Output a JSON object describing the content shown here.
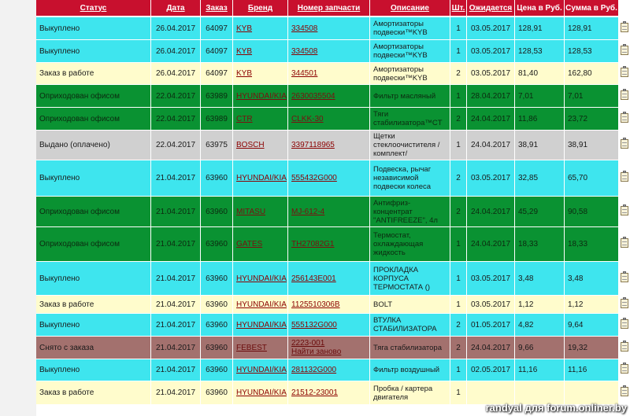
{
  "headers": {
    "status": "Статус",
    "date": "Дата",
    "order": "Заказ",
    "brand": "Бренд",
    "part": "Номер запчасти",
    "desc": "Описание",
    "qty": "Шт.",
    "expected": "Ожидается",
    "price": "Цена в Руб.",
    "sum": "Сумма в Руб."
  },
  "rows": [
    {
      "color": "cyan",
      "status": "Выкуплено",
      "date": "26.04.2017",
      "order": "64097",
      "brand": "KYB",
      "part": "334508",
      "part2": "",
      "desc": "Амортизаторы подвески™KYB",
      "qty": "1",
      "expected": "03.05.2017",
      "price": "128,91",
      "sum": "128,91"
    },
    {
      "color": "cyan",
      "status": "Выкуплено",
      "date": "26.04.2017",
      "order": "64097",
      "brand": "KYB",
      "part": "334508",
      "part2": "",
      "desc": "Амортизаторы подвески™KYB",
      "qty": "1",
      "expected": "03.05.2017",
      "price": "128,53",
      "sum": "128,53"
    },
    {
      "color": "yellow",
      "status": "Заказ в работе",
      "date": "26.04.2017",
      "order": "64097",
      "brand": "KYB",
      "part": "344501",
      "part2": "",
      "desc": "Амортизаторы подвески™KYB",
      "qty": "2",
      "expected": "03.05.2017",
      "price": "81,40",
      "sum": "162,80"
    },
    {
      "color": "green",
      "status": "Оприходован офисом",
      "date": "22.04.2017",
      "order": "63989",
      "brand": "HYUNDAI/KIA",
      "part": "2630035504",
      "part2": "",
      "desc": "Фильтр масляный",
      "qty": "1",
      "expected": "28.04.2017",
      "price": "7,01",
      "sum": "7,01"
    },
    {
      "color": "green",
      "status": "Оприходован офисом",
      "date": "22.04.2017",
      "order": "63989",
      "brand": "CTR",
      "part": "CLKK-30",
      "part2": "",
      "desc": "Тяги стабилизатора™CT",
      "qty": "2",
      "expected": "24.04.2017",
      "price": "11,86",
      "sum": "23,72"
    },
    {
      "color": "gray",
      "status": "Выдано (оплачено)",
      "date": "22.04.2017",
      "order": "63975",
      "brand": "BOSCH",
      "part": "3397118965",
      "part2": "",
      "desc": "Щетки стеклоочистителя /комплект/",
      "qty": "1",
      "expected": "24.04.2017",
      "price": "38,91",
      "sum": "38,91"
    },
    {
      "color": "cyan",
      "status": "Выкуплено",
      "date": "21.04.2017",
      "order": "63960",
      "brand": "HYUNDAI/KIA",
      "part": "555432G000",
      "part2": "",
      "desc": "Подвеска, рычаг независимой подвески колеса",
      "qty": "2",
      "expected": "03.05.2017",
      "price": "32,85",
      "sum": "65,70"
    },
    {
      "color": "green",
      "status": "Оприходован офисом",
      "date": "21.04.2017",
      "order": "63960",
      "brand": "MITASU",
      "part": "MJ-612-4",
      "part2": "",
      "desc": "Антифриз-концентрат \"ANTIFREEZE\", 4л",
      "qty": "2",
      "expected": "24.04.2017",
      "price": "45,29",
      "sum": "90,58"
    },
    {
      "color": "green",
      "status": "Оприходован офисом",
      "date": "21.04.2017",
      "order": "63960",
      "brand": "GATES",
      "part": "TH27082G1",
      "part2": "",
      "desc": "Термостат, охлаждающая жидкость",
      "qty": "1",
      "expected": "24.04.2017",
      "price": "18,33",
      "sum": "18,33"
    },
    {
      "color": "cyan",
      "status": "Выкуплено",
      "date": "21.04.2017",
      "order": "63960",
      "brand": "HYUNDAI/KIA",
      "part": "256143E001",
      "part2": "",
      "desc": "ПРОКЛАДКА КОРПУСА ТЕРМОСТАТА ()",
      "qty": "1",
      "expected": "03.05.2017",
      "price": "3,48",
      "sum": "3,48"
    },
    {
      "color": "yellow",
      "status": "Заказ в работе",
      "date": "21.04.2017",
      "order": "63960",
      "brand": "HYUNDAI/KIA",
      "part": "1125510306B",
      "part2": "",
      "desc": "BOLT",
      "qty": "1",
      "expected": "03.05.2017",
      "price": "1,12",
      "sum": "1,12"
    },
    {
      "color": "cyan",
      "status": "Выкуплено",
      "date": "21.04.2017",
      "order": "63960",
      "brand": "HYUNDAI/KIA",
      "part": "555132G000",
      "part2": "",
      "desc": "ВТУЛКА СТАБИЛИЗАТОРА",
      "qty": "2",
      "expected": "01.05.2017",
      "price": "4,82",
      "sum": "9,64"
    },
    {
      "color": "brown",
      "status": "Снято с заказа",
      "date": "21.04.2017",
      "order": "63960",
      "brand": "FEBEST",
      "part": "2223-001",
      "part2": "Найти заново",
      "desc": "Тяга стабилизатора",
      "qty": "2",
      "expected": "24.04.2017",
      "price": "9,66",
      "sum": "19,32"
    },
    {
      "color": "cyan",
      "status": "Выкуплено",
      "date": "21.04.2017",
      "order": "63960",
      "brand": "HYUNDAI/KIA",
      "part": "281132G000",
      "part2": "",
      "desc": "Фильтр воздушный",
      "qty": "1",
      "expected": "02.05.2017",
      "price": "11,16",
      "sum": "11,16"
    },
    {
      "color": "yellow",
      "status": "Заказ в работе",
      "date": "21.04.2017",
      "order": "63960",
      "brand": "HYUNDAI/KIA",
      "part": "21512-23001",
      "part2": "",
      "desc": "Пробка / картера двигателя",
      "qty": "1",
      "expected": "",
      "price": "",
      "sum": ""
    }
  ],
  "row_heights": [
    29,
    29,
    28,
    29,
    29,
    38,
    46,
    39,
    44,
    43,
    23,
    29,
    29,
    28,
    30
  ],
  "watermark": "randyal для forum.onliner.by"
}
